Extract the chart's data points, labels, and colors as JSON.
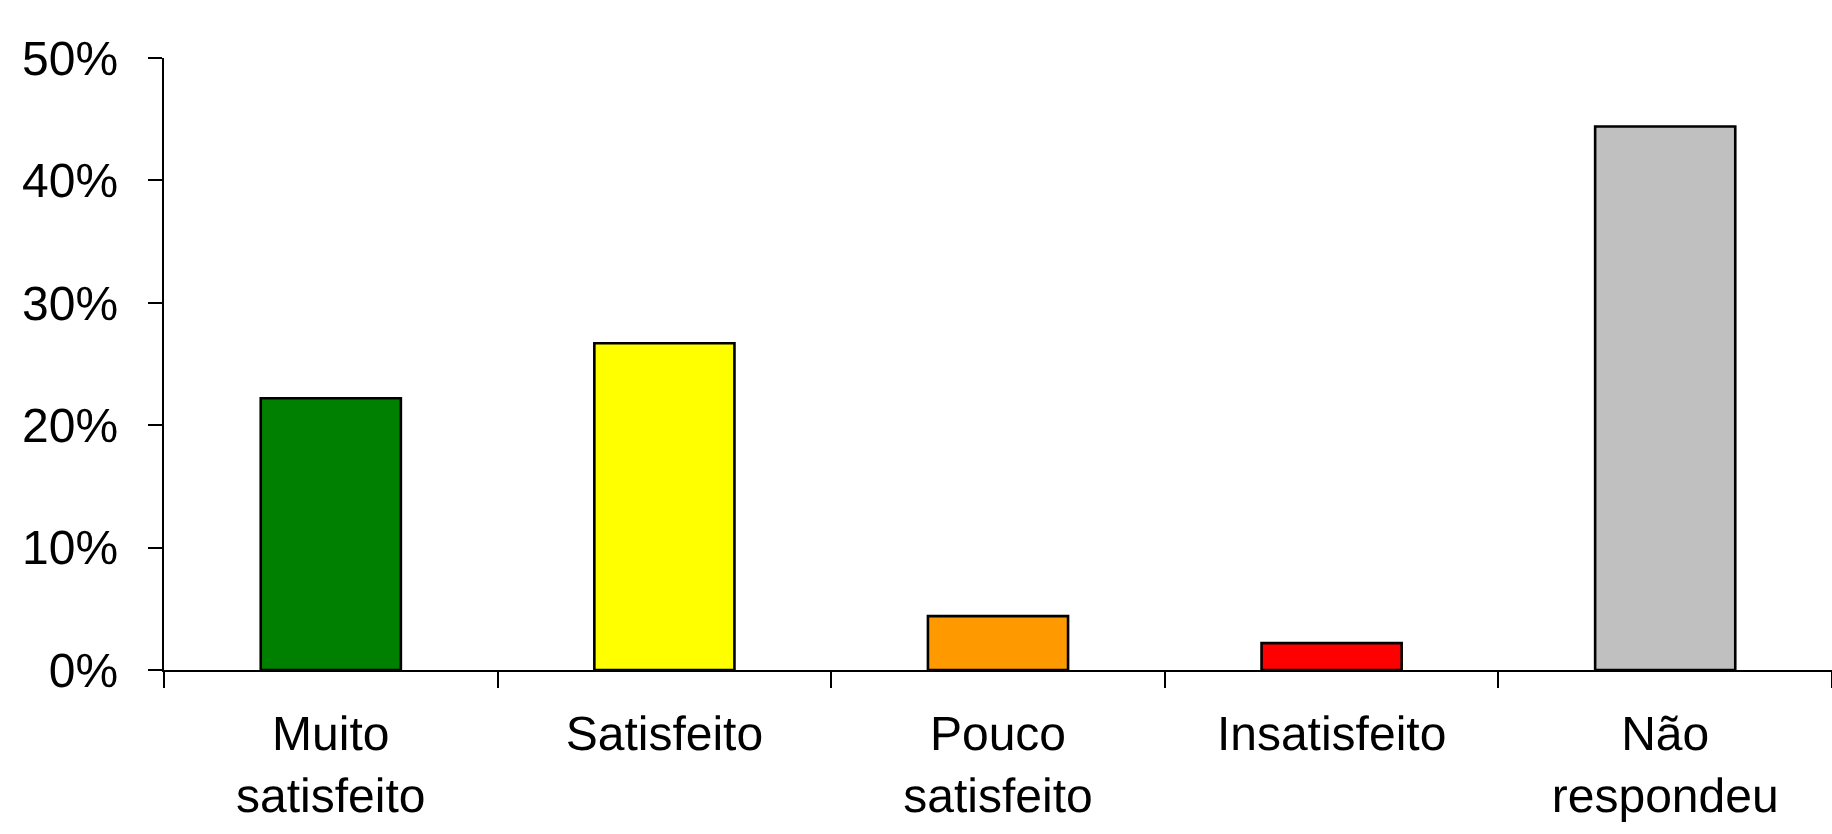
{
  "chart_data": {
    "type": "bar",
    "categories": [
      "Muito satisfeito",
      "Satisfeito",
      "Pouco satisfeito",
      "Insatisfeito",
      "Não respondeu"
    ],
    "values": [
      22.2,
      26.7,
      4.4,
      2.2,
      44.4
    ],
    "colors": [
      "#008000",
      "#ffff00",
      "#ff9900",
      "#ff0000",
      "#c0c0c0"
    ],
    "ylim": [
      0,
      50
    ],
    "yticks": [
      {
        "value": 0,
        "label": "0%"
      },
      {
        "value": 10,
        "label": "10%"
      },
      {
        "value": 20,
        "label": "20%"
      },
      {
        "value": 30,
        "label": "30%"
      },
      {
        "value": 40,
        "label": "40%"
      },
      {
        "value": 50,
        "label": "50%"
      }
    ]
  }
}
